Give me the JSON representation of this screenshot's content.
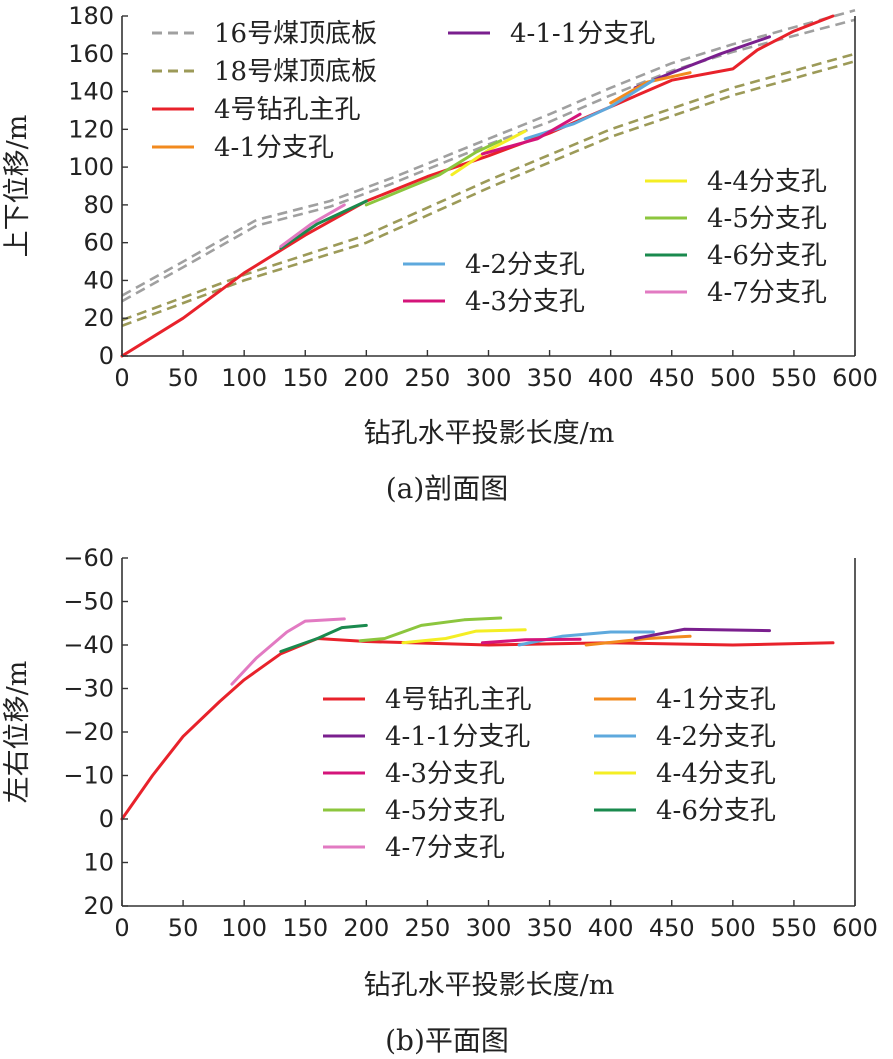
{
  "chart_data": [
    {
      "type": "line",
      "caption": "(a)剖面图",
      "xlabel": "钻孔水平投影长度/m",
      "ylabel": "上下位移/m",
      "xlim": [
        0,
        600
      ],
      "ylim": [
        0,
        180
      ],
      "xticks": [
        0,
        50,
        100,
        150,
        200,
        250,
        300,
        350,
        400,
        450,
        500,
        550,
        600
      ],
      "yticks": [
        0,
        20,
        40,
        60,
        80,
        100,
        120,
        140,
        160,
        180
      ],
      "grid": false,
      "legend_position": "left-top and right-middle",
      "series": [
        {
          "name": "16号煤顶底板",
          "color": "#a0a0a0",
          "dash": true,
          "lines": [
            [
              [
                0,
                32
              ],
              [
                50,
                50
              ],
              [
                110,
                72
              ],
              [
                170,
                82
              ],
              [
                220,
                94
              ],
              [
                300,
                115
              ],
              [
                350,
                128
              ],
              [
                400,
                142
              ],
              [
                450,
                155
              ],
              [
                500,
                165
              ],
              [
                600,
                183
              ]
            ],
            [
              [
                0,
                29
              ],
              [
                50,
                47
              ],
              [
                110,
                69
              ],
              [
                170,
                79
              ],
              [
                220,
                91
              ],
              [
                300,
                112
              ],
              [
                350,
                124
              ],
              [
                400,
                138
              ],
              [
                450,
                151
              ],
              [
                500,
                161
              ],
              [
                600,
                178
              ]
            ]
          ]
        },
        {
          "name": "18号煤顶底板",
          "color": "#9c9a58",
          "dash": true,
          "lines": [
            [
              [
                0,
                19
              ],
              [
                100,
                43
              ],
              [
                200,
                64
              ],
              [
                300,
                93
              ],
              [
                400,
                120
              ],
              [
                500,
                142
              ],
              [
                600,
                160
              ]
            ],
            [
              [
                0,
                16
              ],
              [
                100,
                40
              ],
              [
                200,
                60
              ],
              [
                300,
                89
              ],
              [
                400,
                116
              ],
              [
                500,
                138
              ],
              [
                600,
                156
              ]
            ]
          ]
        },
        {
          "name": "4号钻孔主孔",
          "color": "#e8222b",
          "points": [
            [
              0,
              0
            ],
            [
              50,
              20
            ],
            [
              100,
              44
            ],
            [
              150,
              64
            ],
            [
              200,
              82
            ],
            [
              250,
              95
            ],
            [
              300,
              106
            ],
            [
              350,
              118
            ],
            [
              400,
              132
            ],
            [
              450,
              146
            ],
            [
              500,
              152
            ],
            [
              520,
              162
            ],
            [
              550,
              172
            ],
            [
              582,
              180
            ]
          ]
        },
        {
          "name": "4-1-1分支孔",
          "color": "#7a1f8e",
          "points": [
            [
              420,
              142
            ],
            [
              450,
              150
            ],
            [
              490,
              160
            ],
            [
              530,
              169
            ]
          ]
        },
        {
          "name": "4-1分支孔",
          "color": "#f28a1e",
          "points": [
            [
              400,
              134
            ],
            [
              430,
              145
            ],
            [
              465,
              150
            ]
          ]
        },
        {
          "name": "4-4分支孔",
          "color": "#f4ee24",
          "points": [
            [
              270,
              96
            ],
            [
              300,
              109
            ],
            [
              330,
              119
            ]
          ]
        },
        {
          "name": "4-5分支孔",
          "color": "#8cc63e",
          "points": [
            [
              200,
              80
            ],
            [
              230,
              88
            ],
            [
              260,
              96
            ],
            [
              290,
              108
            ],
            [
              310,
              114
            ]
          ]
        },
        {
          "name": "4-2分支孔",
          "color": "#5ea9dd",
          "points": [
            [
              330,
              115
            ],
            [
              370,
              123
            ],
            [
              400,
              132
            ],
            [
              435,
              146
            ]
          ]
        },
        {
          "name": "4-6分支孔",
          "color": "#1a8a4e",
          "points": [
            [
              130,
              57
            ],
            [
              160,
              70
            ],
            [
              200,
              82
            ]
          ]
        },
        {
          "name": "4-3分支孔",
          "color": "#d4147a",
          "points": [
            [
              295,
              107
            ],
            [
              340,
              115
            ],
            [
              375,
              128
            ]
          ]
        },
        {
          "name": "4-7分支孔",
          "color": "#e27ac2",
          "points": [
            [
              130,
              58
            ],
            [
              155,
              70
            ],
            [
              182,
              80
            ]
          ]
        }
      ]
    },
    {
      "type": "line",
      "caption": "(b)平面图",
      "xlabel": "钻孔水平投影长度/m",
      "ylabel": "左右位移/m",
      "xlim": [
        0,
        600
      ],
      "ylim": [
        20,
        -60
      ],
      "xticks": [
        0,
        50,
        100,
        150,
        200,
        250,
        300,
        350,
        400,
        450,
        500,
        550,
        600
      ],
      "yticks": [
        20,
        10,
        0,
        -10,
        -20,
        -30,
        -40,
        -50,
        -60
      ],
      "grid": false,
      "legend_position": "center",
      "series": [
        {
          "name": "4号钻孔主孔",
          "color": "#e8222b",
          "points": [
            [
              0,
              0
            ],
            [
              25,
              -10
            ],
            [
              50,
              -19
            ],
            [
              80,
              -27
            ],
            [
              100,
              -32
            ],
            [
              130,
              -38
            ],
            [
              160,
              -41.5
            ],
            [
              200,
              -40.8
            ],
            [
              300,
              -40
            ],
            [
              400,
              -40.5
            ],
            [
              500,
              -40
            ],
            [
              582,
              -40.5
            ]
          ]
        },
        {
          "name": "4-1分支孔",
          "color": "#f28a1e",
          "points": [
            [
              380,
              -40
            ],
            [
              430,
              -41.5
            ],
            [
              465,
              -42
            ]
          ]
        },
        {
          "name": "4-1-1分支孔",
          "color": "#7a1f8e",
          "points": [
            [
              420,
              -41.5
            ],
            [
              460,
              -43.6
            ],
            [
              530,
              -43.3
            ]
          ]
        },
        {
          "name": "4-2分支孔",
          "color": "#5ea9dd",
          "points": [
            [
              325,
              -40
            ],
            [
              360,
              -42
            ],
            [
              400,
              -43
            ],
            [
              435,
              -43
            ]
          ]
        },
        {
          "name": "4-3分支孔",
          "color": "#d4147a",
          "points": [
            [
              295,
              -40.5
            ],
            [
              330,
              -41.2
            ],
            [
              375,
              -41.3
            ]
          ]
        },
        {
          "name": "4-4分支孔",
          "color": "#f4ee24",
          "points": [
            [
              230,
              -40.5
            ],
            [
              265,
              -41.5
            ],
            [
              290,
              -43.2
            ],
            [
              330,
              -43.5
            ]
          ]
        },
        {
          "name": "4-5分支孔",
          "color": "#8cc63e",
          "points": [
            [
              195,
              -41
            ],
            [
              215,
              -41.5
            ],
            [
              245,
              -44.5
            ],
            [
              280,
              -45.8
            ],
            [
              310,
              -46.2
            ]
          ]
        },
        {
          "name": "4-6分支孔",
          "color": "#1a8a4e",
          "points": [
            [
              130,
              -38.5
            ],
            [
              160,
              -41.5
            ],
            [
              180,
              -44
            ],
            [
              200,
              -44.5
            ]
          ]
        },
        {
          "name": "4-7分支孔",
          "color": "#e27ac2",
          "points": [
            [
              90,
              -31
            ],
            [
              110,
              -37
            ],
            [
              135,
              -43
            ],
            [
              150,
              -45.5
            ],
            [
              182,
              -46
            ]
          ]
        }
      ]
    }
  ]
}
